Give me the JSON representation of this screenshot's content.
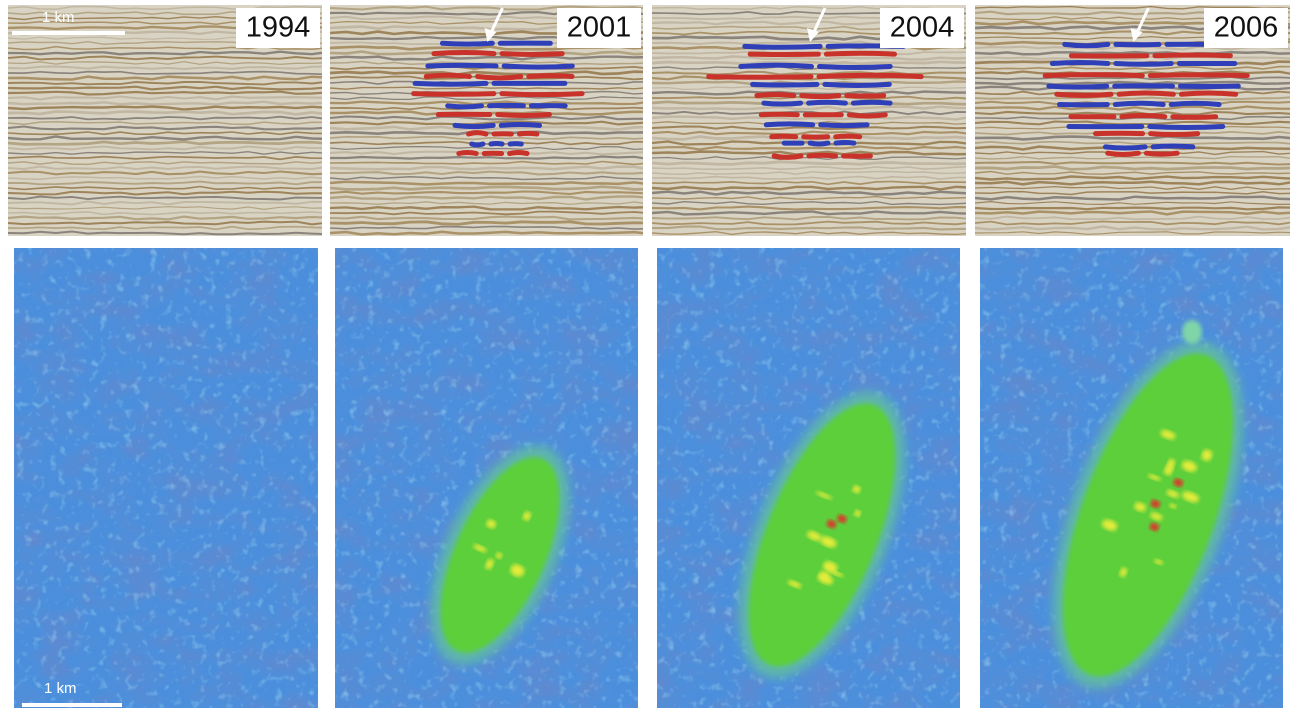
{
  "top_scale_bar": "1 km",
  "bottom_scale_bar": "1 km",
  "panels": [
    {
      "year": "1994"
    },
    {
      "year": "2001"
    },
    {
      "year": "2004"
    },
    {
      "year": "2006"
    }
  ]
}
